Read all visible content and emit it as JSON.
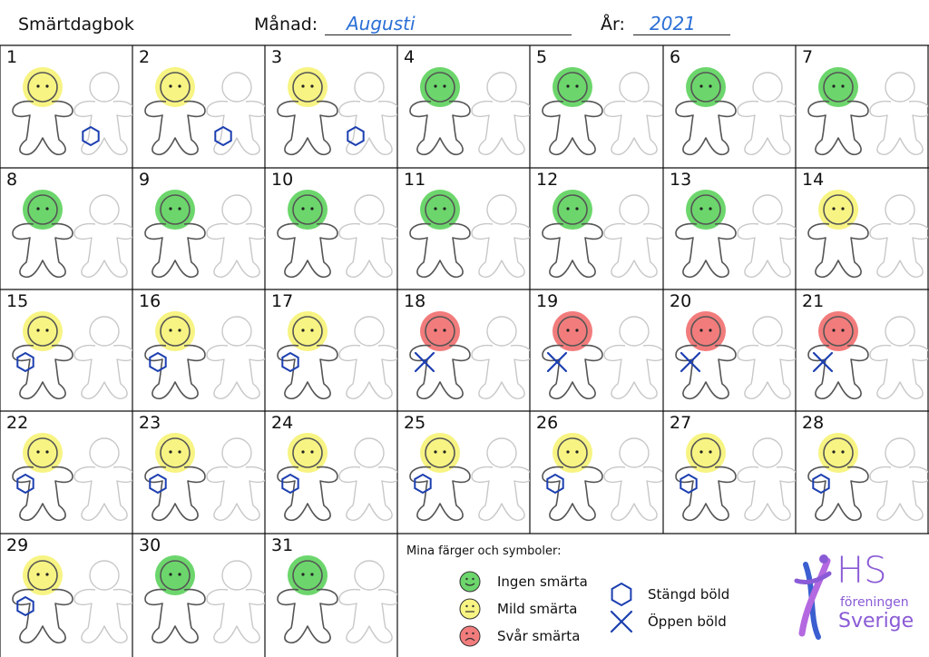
{
  "header": {
    "title": "Smärtdagbok",
    "month_label": "Månad:",
    "month_value": "Augusti",
    "year_label": "År:",
    "year_value": "2021"
  },
  "colors": {
    "green": "#6cd66c",
    "yellow": "#f7f483",
    "red": "#f27c7c",
    "symbol": "#1c3fb0"
  },
  "days": [
    {
      "n": "1",
      "pain": "yellow",
      "mark": "hex-right"
    },
    {
      "n": "2",
      "pain": "yellow",
      "mark": "hex-right"
    },
    {
      "n": "3",
      "pain": "yellow",
      "mark": "hex-right"
    },
    {
      "n": "4",
      "pain": "green",
      "mark": "none"
    },
    {
      "n": "5",
      "pain": "green",
      "mark": "none"
    },
    {
      "n": "6",
      "pain": "green",
      "mark": "none"
    },
    {
      "n": "7",
      "pain": "green",
      "mark": "none"
    },
    {
      "n": "8",
      "pain": "green",
      "mark": "none"
    },
    {
      "n": "9",
      "pain": "green",
      "mark": "none"
    },
    {
      "n": "10",
      "pain": "green",
      "mark": "none"
    },
    {
      "n": "11",
      "pain": "green",
      "mark": "none"
    },
    {
      "n": "12",
      "pain": "green",
      "mark": "none"
    },
    {
      "n": "13",
      "pain": "green",
      "mark": "none"
    },
    {
      "n": "14",
      "pain": "yellow",
      "mark": "none"
    },
    {
      "n": "15",
      "pain": "yellow",
      "mark": "hex-left"
    },
    {
      "n": "16",
      "pain": "yellow",
      "mark": "hex-left"
    },
    {
      "n": "17",
      "pain": "yellow",
      "mark": "hex-left"
    },
    {
      "n": "18",
      "pain": "red",
      "mark": "x"
    },
    {
      "n": "19",
      "pain": "red",
      "mark": "x"
    },
    {
      "n": "20",
      "pain": "red",
      "mark": "x"
    },
    {
      "n": "21",
      "pain": "red",
      "mark": "x"
    },
    {
      "n": "22",
      "pain": "yellow",
      "mark": "hex-left"
    },
    {
      "n": "23",
      "pain": "yellow",
      "mark": "hex-left"
    },
    {
      "n": "24",
      "pain": "yellow",
      "mark": "hex-left"
    },
    {
      "n": "25",
      "pain": "yellow",
      "mark": "hex-left"
    },
    {
      "n": "26",
      "pain": "yellow",
      "mark": "hex-left"
    },
    {
      "n": "27",
      "pain": "yellow",
      "mark": "hex-left"
    },
    {
      "n": "28",
      "pain": "yellow",
      "mark": "hex-left"
    },
    {
      "n": "29",
      "pain": "yellow",
      "mark": "hex-left"
    },
    {
      "n": "30",
      "pain": "green",
      "mark": "none"
    },
    {
      "n": "31",
      "pain": "green",
      "mark": "none"
    }
  ],
  "legend": {
    "title": "Mina färger och symboler:",
    "pain_items": [
      {
        "label": "Ingen smärta",
        "color": "green",
        "face": "happy"
      },
      {
        "label": "Mild smärta",
        "color": "yellow",
        "face": "neutral"
      },
      {
        "label": "Svår smärta",
        "color": "red",
        "face": "sad"
      }
    ],
    "symbol_items": [
      {
        "label": "Stängd böld",
        "symbol": "hexagon"
      },
      {
        "label": "Öppen böld",
        "symbol": "x"
      }
    ]
  },
  "logo": {
    "letters": "HS",
    "line1": "föreningen",
    "line2": "Sverige",
    "color_primary": "#8a5bd6",
    "color_secondary": "#3b5fd0"
  }
}
